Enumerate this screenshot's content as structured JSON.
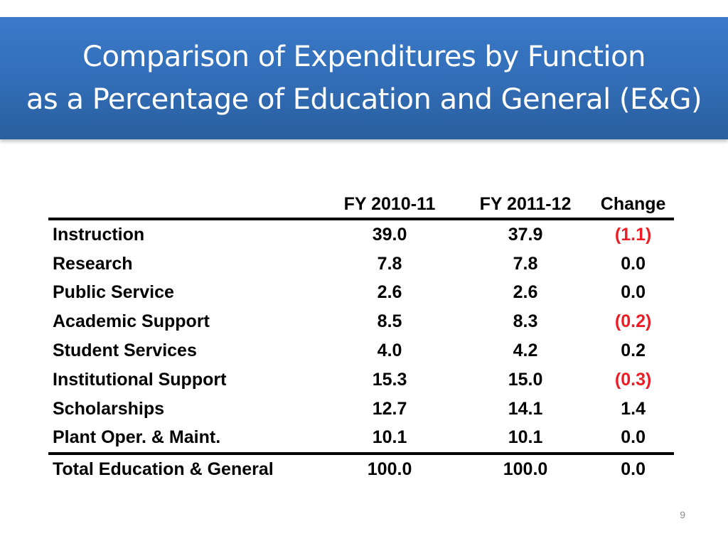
{
  "title": {
    "line1": "Comparison of Expenditures by Function",
    "line2": "as a Percentage of Education and General (E&G)"
  },
  "table": {
    "headers": [
      "",
      "FY 2010-11",
      "FY 2011-12",
      "Change"
    ],
    "rows": [
      {
        "label": "Instruction",
        "fy2010_11": "39.0",
        "fy2011_12": "37.9",
        "change": "(1.1)",
        "negative": true
      },
      {
        "label": "Research",
        "fy2010_11": "7.8",
        "fy2011_12": "7.8",
        "change": "0.0",
        "negative": false
      },
      {
        "label": "Public Service",
        "fy2010_11": "2.6",
        "fy2011_12": "2.6",
        "change": "0.0",
        "negative": false
      },
      {
        "label": "Academic Support",
        "fy2010_11": "8.5",
        "fy2011_12": "8.3",
        "change": "(0.2)",
        "negative": true
      },
      {
        "label": "Student Services",
        "fy2010_11": "4.0",
        "fy2011_12": "4.2",
        "change": "0.2",
        "negative": false
      },
      {
        "label": "Institutional Support",
        "fy2010_11": "15.3",
        "fy2011_12": "15.0",
        "change": "(0.3)",
        "negative": true
      },
      {
        "label": "Scholarships",
        "fy2010_11": "12.7",
        "fy2011_12": "14.1",
        "change": "1.4",
        "negative": false
      },
      {
        "label": "Plant Oper. & Maint.",
        "fy2010_11": "10.1",
        "fy2011_12": "10.1",
        "change": "0.0",
        "negative": false
      }
    ],
    "total": {
      "label": "Total Education & General",
      "fy2010_11": "100.0",
      "fy2011_12": "100.0",
      "change": "0.0"
    }
  },
  "colors": {
    "banner": "#336fba",
    "negative": "#ee1c25"
  },
  "page_number": "9"
}
